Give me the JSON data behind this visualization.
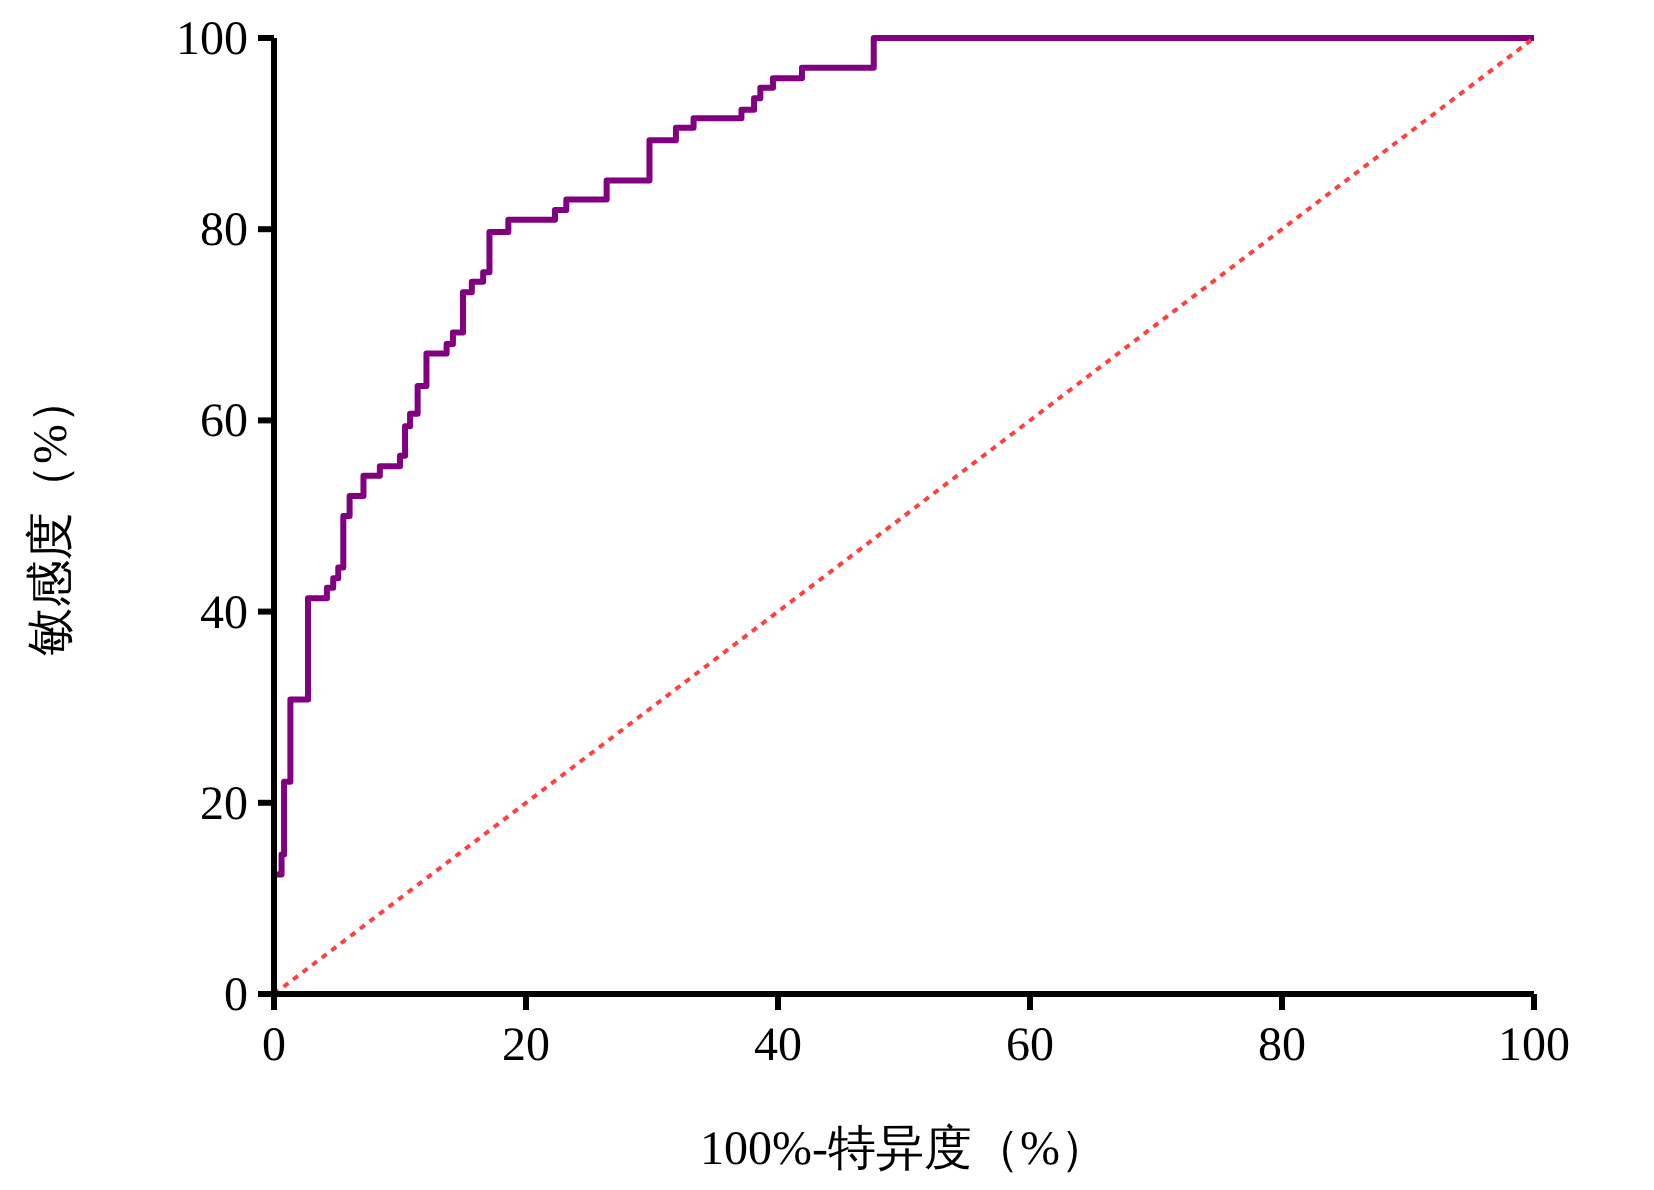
{
  "chart_data": {
    "type": "step",
    "xlabel": "100%-特异度（%）",
    "ylabel": "敏感度（%）",
    "xlim": [
      0,
      100
    ],
    "ylim": [
      0,
      100
    ],
    "xticks": [
      0,
      20,
      40,
      60,
      80,
      100
    ],
    "yticks": [
      0,
      20,
      40,
      60,
      80,
      100
    ],
    "series": [
      {
        "color": "#800080",
        "x": [
          0,
          0,
          0.6,
          0.8,
          1.3,
          2.7,
          4.2,
          4.7,
          5.1,
          5.5,
          6.0,
          7.1,
          8.4,
          10.0,
          10.4,
          10.8,
          11.4,
          12.1,
          13.7,
          14.2,
          15.0,
          15.7,
          16.6,
          17.1,
          18.6,
          22.3,
          23.2,
          26.4,
          29.8,
          31.9,
          33.3,
          37.1,
          38.1,
          38.6,
          39.6,
          41.9,
          47.6,
          100
        ],
        "values": [
          0,
          12.5,
          14.6,
          22.2,
          30.8,
          41.4,
          42.5,
          43.5,
          44.6,
          50.0,
          52.1,
          54.2,
          55.2,
          56.3,
          59.4,
          60.7,
          63.6,
          67.0,
          68.0,
          69.2,
          73.4,
          74.5,
          75.5,
          79.7,
          81.0,
          82.0,
          83.1,
          85.1,
          89.3,
          90.6,
          91.6,
          92.5,
          93.7,
          94.8,
          95.8,
          96.9,
          100,
          100
        ]
      },
      {
        "type": "line",
        "color": "#ff4040",
        "line_style": "dotted",
        "x": [
          0,
          100
        ],
        "values": [
          0,
          100
        ]
      }
    ]
  }
}
